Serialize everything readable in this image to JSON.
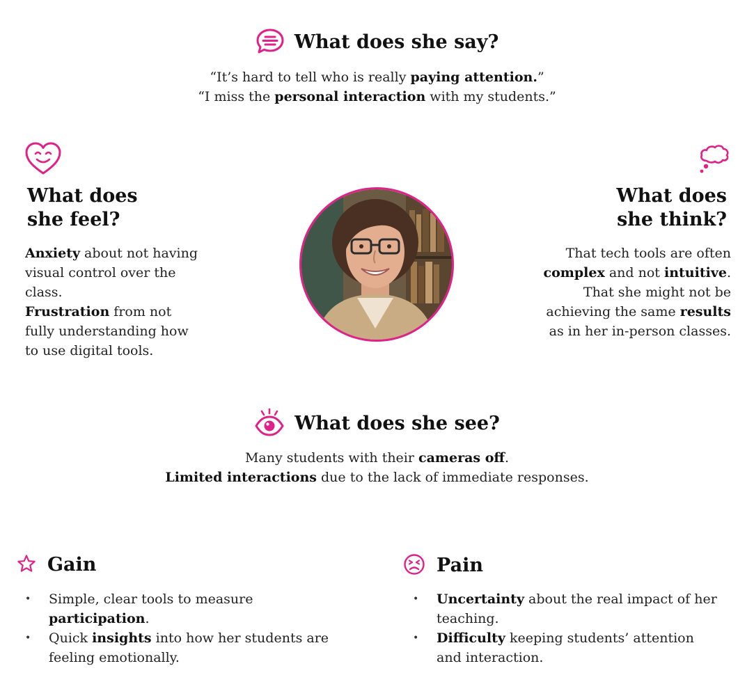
{
  "accent_color": "#e0218a",
  "say": {
    "icon": "speech-bubble-icon",
    "title": "What does she say?",
    "quotes": [
      [
        "“It’s hard to tell who is really ",
        "paying attention.",
        "”"
      ],
      [
        "“I miss the ",
        "personal interaction",
        " with my students.”"
      ]
    ]
  },
  "feel": {
    "icon": "heart-smile-icon",
    "title_line1": "What does",
    "title_line2": "she feel?",
    "lines": [
      [
        "",
        "Anxiety",
        " about not having"
      ],
      [
        "visual control over the",
        "",
        ""
      ],
      [
        "class.",
        "",
        ""
      ],
      [
        "",
        "Frustration",
        " from not"
      ],
      [
        "fully understanding how",
        "",
        ""
      ],
      [
        "to use digital tools.",
        "",
        ""
      ]
    ]
  },
  "think": {
    "icon": "thought-bubble-icon",
    "title_line1": "What does",
    "title_line2": "she think?",
    "lines": [
      [
        "That tech tools are often",
        "",
        ""
      ],
      [
        "",
        "complex",
        " and not "
      ],
      [
        "That she might not be",
        "",
        ""
      ],
      [
        "achieving the same ",
        "results",
        ""
      ],
      [
        "as in her in-person classes.",
        "",
        ""
      ]
    ],
    "line2_extra_bold": "intuitive",
    "line2_tail": "."
  },
  "portrait": {
    "icon": "portrait-photo"
  },
  "see": {
    "icon": "eye-icon",
    "title": "What does she see?",
    "lines": [
      [
        "Many students with their ",
        "cameras off",
        "."
      ],
      [
        "",
        "Limited interactions",
        " due to the lack of immediate responses."
      ]
    ]
  },
  "gain": {
    "icon": "star-icon",
    "title": "Gain",
    "items": [
      {
        "l1": [
          "Simple, clear tools to measure",
          "",
          ""
        ],
        "l2": [
          "",
          "participation",
          "."
        ]
      },
      {
        "l1": [
          "Quick ",
          "insights",
          " into how her students are"
        ],
        "l2": [
          "feeling emotionally.",
          "",
          ""
        ]
      }
    ]
  },
  "pain": {
    "icon": "frown-face-icon",
    "title": "Pain",
    "items": [
      {
        "l1": [
          "",
          "Uncertainty",
          " about the real impact of her"
        ],
        "l2": [
          "teaching.",
          "",
          ""
        ]
      },
      {
        "l1": [
          "",
          "Difficulty",
          " keeping students’ attention"
        ],
        "l2": [
          "and interaction.",
          "",
          ""
        ]
      }
    ]
  }
}
